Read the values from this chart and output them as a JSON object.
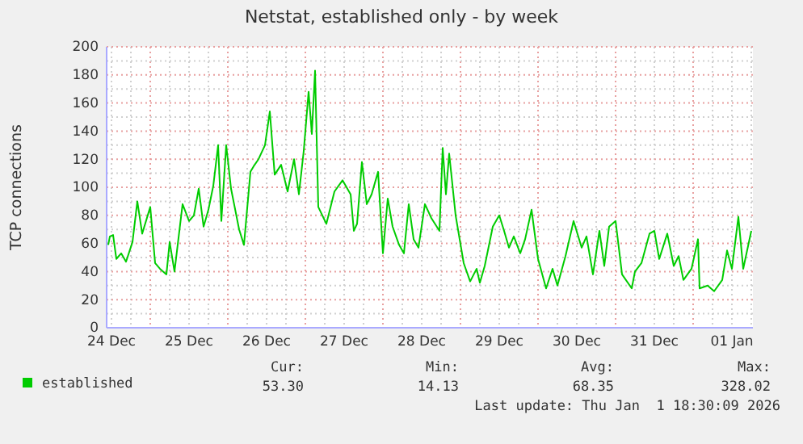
{
  "chart_data": {
    "type": "line",
    "title": "Netstat, established only - by week",
    "ylabel": "TCP connections",
    "xlim": [
      "2025-12-24T10:30",
      "2026-01-01T18:30"
    ],
    "xticks": [
      {
        "value": "2025-12-24T12:00",
        "label": "24 Dec"
      },
      {
        "value": "2025-12-25T12:00",
        "label": "25 Dec"
      },
      {
        "value": "2025-12-26T12:00",
        "label": "26 Dec"
      },
      {
        "value": "2025-12-27T12:00",
        "label": "27 Dec"
      },
      {
        "value": "2025-12-28T12:00",
        "label": "28 Dec"
      },
      {
        "value": "2025-12-29T12:00",
        "label": "29 Dec"
      },
      {
        "value": "2025-12-30T12:00",
        "label": "30 Dec"
      },
      {
        "value": "2025-12-31T12:00",
        "label": "31 Dec"
      },
      {
        "value": "2026-01-01T12:00",
        "label": "01 Jan"
      }
    ],
    "ylim": [
      0,
      200
    ],
    "yticks": [
      0,
      20,
      40,
      60,
      80,
      100,
      120,
      140,
      160,
      180,
      200
    ],
    "grid": true,
    "legend": "bottom left",
    "x": [
      "2025-12-24T11:00",
      "2025-12-24T11:30",
      "2025-12-24T12:30",
      "2025-12-24T13:30",
      "2025-12-24T15:00",
      "2025-12-24T16:30",
      "2025-12-24T18:30",
      "2025-12-24T20:00",
      "2025-12-24T21:30",
      "2025-12-25T00:00",
      "2025-12-25T01:30",
      "2025-12-25T03:00",
      "2025-12-25T05:00",
      "2025-12-25T06:00",
      "2025-12-25T07:30",
      "2025-12-25T10:00",
      "2025-12-25T12:00",
      "2025-12-25T13:30",
      "2025-12-25T15:00",
      "2025-12-25T16:30",
      "2025-12-25T18:00",
      "2025-12-25T19:30",
      "2025-12-25T21:00",
      "2025-12-25T22:00",
      "2025-12-25T23:30",
      "2025-12-26T01:00",
      "2025-12-26T03:30",
      "2025-12-26T05:00",
      "2025-12-26T07:00",
      "2025-12-26T08:00",
      "2025-12-26T09:30",
      "2025-12-26T11:30",
      "2025-12-26T13:00",
      "2025-12-26T14:30",
      "2025-12-26T16:30",
      "2025-12-26T18:30",
      "2025-12-26T20:30",
      "2025-12-26T22:00",
      "2025-12-26T23:30",
      "2025-12-27T01:00",
      "2025-12-27T02:00",
      "2025-12-27T03:00",
      "2025-12-27T04:00",
      "2025-12-27T06:30",
      "2025-12-27T09:00",
      "2025-12-27T11:30",
      "2025-12-27T14:00",
      "2025-12-27T15:00",
      "2025-12-27T16:00",
      "2025-12-27T17:30",
      "2025-12-27T19:00",
      "2025-12-27T20:30",
      "2025-12-27T22:30",
      "2025-12-28T00:00",
      "2025-12-28T01:30",
      "2025-12-28T03:00",
      "2025-12-28T05:00",
      "2025-12-28T06:30",
      "2025-12-28T08:00",
      "2025-12-28T09:30",
      "2025-12-28T11:00",
      "2025-12-28T13:00",
      "2025-12-28T15:00",
      "2025-12-28T17:30",
      "2025-12-28T18:30",
      "2025-12-28T19:30",
      "2025-12-28T20:30",
      "2025-12-28T22:30",
      "2025-12-29T01:00",
      "2025-12-29T03:00",
      "2025-12-29T05:00",
      "2025-12-29T06:00",
      "2025-12-29T07:30",
      "2025-12-29T10:00",
      "2025-12-29T12:00",
      "2025-12-29T13:30",
      "2025-12-29T15:00",
      "2025-12-29T16:30",
      "2025-12-29T18:30",
      "2025-12-29T20:00",
      "2025-12-29T22:00",
      "2025-12-30T00:00",
      "2025-12-30T02:30",
      "2025-12-30T04:30",
      "2025-12-30T06:00",
      "2025-12-30T08:30",
      "2025-12-30T11:00",
      "2025-12-30T13:30",
      "2025-12-30T15:00",
      "2025-12-30T17:00",
      "2025-12-30T19:00",
      "2025-12-30T20:30",
      "2025-12-30T22:00",
      "2025-12-31T00:00",
      "2025-12-31T02:00",
      "2025-12-31T05:00",
      "2025-12-31T06:00",
      "2025-12-31T08:00",
      "2025-12-31T10:30",
      "2025-12-31T12:00",
      "2025-12-31T13:30",
      "2025-12-31T16:00",
      "2025-12-31T18:00",
      "2025-12-31T19:30",
      "2025-12-31T21:00",
      "2025-12-31T23:30",
      "2026-01-01T01:30",
      "2026-01-01T02:00",
      "2026-01-01T04:30",
      "2026-01-01T06:30",
      "2026-01-01T09:00",
      "2026-01-01T10:30",
      "2026-01-01T12:00",
      "2026-01-01T14:00",
      "2026-01-01T15:30",
      "2026-01-01T18:00"
    ],
    "series": [
      {
        "name": "established",
        "color": "#00cc00",
        "values": [
          59,
          65,
          66,
          49,
          53,
          47,
          61,
          90,
          67,
          86,
          46,
          42,
          38,
          61,
          40,
          88,
          76,
          80,
          99,
          72,
          84,
          101,
          130,
          76,
          130,
          99,
          70,
          59,
          111,
          115,
          120,
          130,
          154,
          109,
          116,
          97,
          120,
          95,
          126,
          168,
          138,
          183,
          86,
          74,
          97,
          105,
          95,
          69,
          74,
          118,
          88,
          95,
          111,
          53,
          92,
          72,
          59,
          53,
          88,
          63,
          57,
          88,
          78,
          69,
          128,
          95,
          124,
          80,
          46,
          33,
          42,
          32,
          44,
          72,
          80,
          69,
          57,
          65,
          53,
          63,
          84,
          49,
          28,
          42,
          30,
          51,
          76,
          57,
          65,
          38,
          69,
          44,
          72,
          76,
          38,
          28,
          40,
          46,
          67,
          69,
          49,
          67,
          44,
          51,
          34,
          42,
          63,
          28,
          30,
          26,
          34,
          55,
          42,
          79,
          42,
          69
        ]
      }
    ],
    "annotations": [
      "Cur:",
      "Min:",
      "Avg:",
      "Max:",
      "53.30",
      "14.13",
      "68.35",
      "328.02",
      "Last update: Thu Jan  1 18:30:09 2026"
    ]
  }
}
